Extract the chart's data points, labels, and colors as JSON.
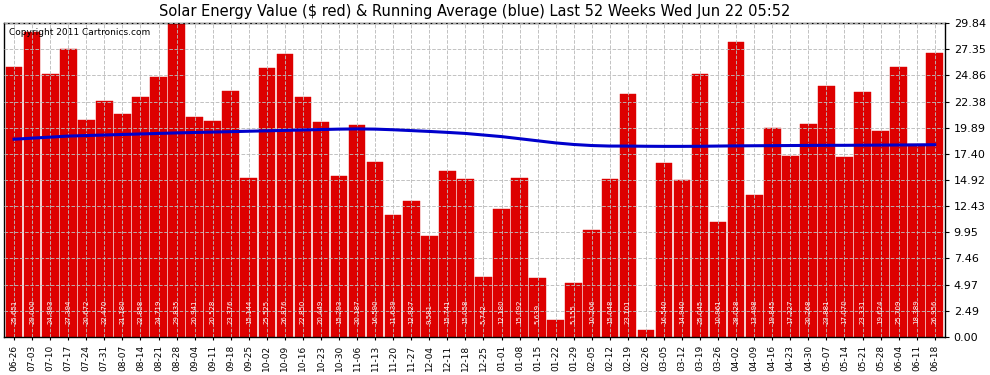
{
  "title": "Solar Energy Value ($ red) & Running Average (blue) Last 52 Weeks Wed Jun 22 05:52",
  "copyright": "Copyright 2011 Cartronics.com",
  "bar_color": "#dd0000",
  "line_color": "#0000cc",
  "background_color": "#ffffff",
  "grid_color": "#bbbbbb",
  "ylim": [
    0,
    29.84
  ],
  "yticks": [
    0.0,
    2.49,
    4.97,
    7.46,
    9.95,
    12.43,
    14.92,
    17.4,
    19.89,
    22.38,
    24.86,
    27.35,
    29.84
  ],
  "categories": [
    "06-26",
    "07-03",
    "07-10",
    "07-17",
    "07-24",
    "07-31",
    "08-07",
    "08-14",
    "08-21",
    "08-28",
    "09-04",
    "09-11",
    "09-18",
    "09-25",
    "10-02",
    "10-09",
    "10-16",
    "10-23",
    "10-30",
    "11-06",
    "11-13",
    "11-20",
    "11-27",
    "12-04",
    "12-11",
    "12-18",
    "12-25",
    "01-01",
    "01-08",
    "01-15",
    "01-22",
    "01-29",
    "02-05",
    "02-12",
    "02-19",
    "02-26",
    "03-05",
    "03-12",
    "03-19",
    "03-26",
    "04-02",
    "04-09",
    "04-16",
    "04-23",
    "04-30",
    "05-07",
    "05-14",
    "05-21",
    "05-28",
    "06-04",
    "06-11",
    "06-18"
  ],
  "bar_values": [
    25.651,
    29.0,
    24.993,
    27.394,
    20.672,
    22.47,
    21.18,
    22.858,
    24.719,
    29.835,
    20.941,
    20.528,
    23.376,
    15.144,
    25.525,
    26.876,
    22.85,
    20.449,
    15.293,
    20.187,
    16.59,
    11.639,
    12.927,
    9.581,
    15.741,
    15.058,
    5.742,
    12.18,
    15.092,
    5.639,
    1.577,
    5.155,
    10.206,
    15.048,
    23.101,
    0.707,
    16.54,
    14.94,
    25.045,
    10.961,
    28.028,
    13.498,
    19.845,
    17.227,
    20.268,
    23.881,
    17.07,
    23.331,
    19.624,
    25.709,
    18.389,
    26.956
  ],
  "avg_values": [
    18.8,
    18.9,
    19.0,
    19.1,
    19.15,
    19.2,
    19.25,
    19.3,
    19.35,
    19.4,
    19.44,
    19.48,
    19.52,
    19.56,
    19.6,
    19.64,
    19.68,
    19.72,
    19.76,
    19.78,
    19.76,
    19.7,
    19.62,
    19.54,
    19.45,
    19.35,
    19.2,
    19.05,
    18.85,
    18.65,
    18.45,
    18.3,
    18.2,
    18.15,
    18.15,
    18.13,
    18.12,
    18.12,
    18.13,
    18.15,
    18.17,
    18.18,
    18.19,
    18.2,
    18.21,
    18.22,
    18.22,
    18.23,
    18.24,
    18.25,
    18.26,
    18.28
  ]
}
